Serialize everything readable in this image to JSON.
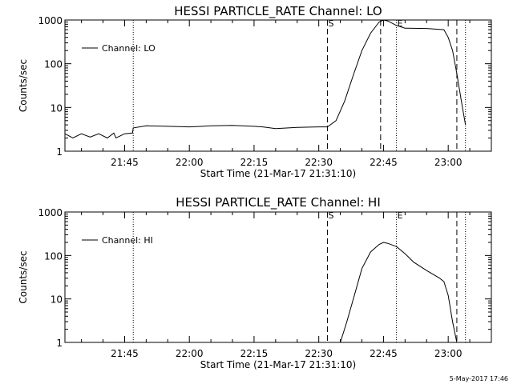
{
  "chart_data": [
    {
      "type": "line",
      "title": "HESSI PARTICLE_RATE Channel: LO",
      "xlabel": "Start Time (21-Mar-17 21:31:10)",
      "ylabel": "Counts/sec",
      "y_scale": "log",
      "ylim": [
        1,
        1000
      ],
      "y_ticks": [
        1,
        10,
        100,
        1000
      ],
      "y_tick_labels": [
        "1",
        "10",
        "100",
        "1000"
      ],
      "xlim": [
        "21:31:10",
        "23:10:00"
      ],
      "x_ticks": [
        "21:45",
        "22:00",
        "22:15",
        "22:30",
        "22:45",
        "23:00"
      ],
      "legend": {
        "label": "Channel: LO",
        "position": "top-left"
      },
      "markers": [
        {
          "time": "22:32:00",
          "style": "dashed",
          "label": "S"
        },
        {
          "time": "22:44:20",
          "style": "dashed",
          "label": ""
        },
        {
          "time": "23:02:00",
          "style": "dashed",
          "label": ""
        },
        {
          "time": "21:47:00",
          "style": "dotted",
          "label": ""
        },
        {
          "time": "22:48:00",
          "style": "dotted",
          "label": "E"
        },
        {
          "time": "23:04:00",
          "style": "dotted",
          "label": ""
        }
      ],
      "series": [
        {
          "x": [
            "21:31:10",
            "21:33:00",
            "21:35:00",
            "21:37:00",
            "21:39:00",
            "21:41:00",
            "21:42:30",
            "21:43:00",
            "21:45:00",
            "21:46:50",
            "21:47:00",
            "21:50:00",
            "21:55:00",
            "22:00:00",
            "22:05:00",
            "22:10:00",
            "22:15:00",
            "22:17:00",
            "22:20:00",
            "22:25:00",
            "22:30:00",
            "22:32:00",
            "22:34:00",
            "22:36:00",
            "22:38:00",
            "22:40:00",
            "22:42:00",
            "22:44:00",
            "22:45:00",
            "22:46:00",
            "22:48:00",
            "22:50:00",
            "22:55:00",
            "22:59:00",
            "23:00:00",
            "23:01:00",
            "23:02:00",
            "23:03:00",
            "23:04:00"
          ],
          "values": [
            2.5,
            2.0,
            2.5,
            2.1,
            2.5,
            2.0,
            2.6,
            2.0,
            2.5,
            2.6,
            3.4,
            3.8,
            3.7,
            3.6,
            3.8,
            3.9,
            3.7,
            3.6,
            3.3,
            3.5,
            3.6,
            3.6,
            5,
            14,
            55,
            200,
            500,
            900,
            1000,
            950,
            750,
            650,
            640,
            600,
            400,
            200,
            60,
            15,
            4
          ]
        }
      ]
    },
    {
      "type": "line",
      "title": "HESSI PARTICLE_RATE Channel: HI",
      "xlabel": "Start Time (21-Mar-17 21:31:10)",
      "ylabel": "Counts/sec",
      "y_scale": "log",
      "ylim": [
        1,
        1000
      ],
      "y_ticks": [
        1,
        10,
        100,
        1000
      ],
      "y_tick_labels": [
        "1",
        "10",
        "100",
        "1000"
      ],
      "xlim": [
        "21:31:10",
        "23:10:00"
      ],
      "x_ticks": [
        "21:45",
        "22:00",
        "22:15",
        "22:30",
        "22:45",
        "23:00"
      ],
      "legend": {
        "label": "Channel: HI",
        "position": "top-left"
      },
      "markers": [
        {
          "time": "22:32:00",
          "style": "dashed",
          "label": "S"
        },
        {
          "time": "23:02:00",
          "style": "dashed",
          "label": ""
        },
        {
          "time": "21:47:00",
          "style": "dotted",
          "label": ""
        },
        {
          "time": "22:48:00",
          "style": "dotted",
          "label": "E"
        },
        {
          "time": "23:04:00",
          "style": "dotted",
          "label": ""
        }
      ],
      "series": [
        {
          "x": [
            "22:35:00",
            "22:36:30",
            "22:38:00",
            "22:40:00",
            "22:42:00",
            "22:44:00",
            "22:45:00",
            "22:46:00",
            "22:48:00",
            "22:50:00",
            "22:52:00",
            "22:55:00",
            "22:58:00",
            "22:59:00",
            "23:00:00",
            "23:01:00",
            "23:02:00"
          ],
          "values": [
            1,
            3,
            10,
            50,
            120,
            180,
            200,
            190,
            160,
            110,
            70,
            45,
            30,
            25,
            12,
            3,
            1
          ]
        }
      ]
    }
  ],
  "footer": {
    "date_stamp": "5-May-2017 17:46"
  }
}
